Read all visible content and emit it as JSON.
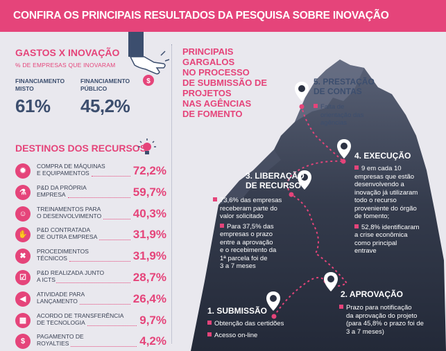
{
  "header": {
    "title": "CONFIRA OS PRINCIPAIS RESULTADOS DA PESQUISA SOBRE INOVAÇÃO"
  },
  "gastos": {
    "title": "GASTOS X INOVAÇÃO",
    "subtitle": "% DE EMPRESAS QUE INOVARAM",
    "misto_label_1": "FINANCIAMENTO",
    "misto_label_2": "MISTO",
    "misto_value": "61%",
    "publico_label_1": "FINANCIAMENTO",
    "publico_label_2": "PÚBLICO",
    "publico_value": "45,2%"
  },
  "destinos": {
    "title": "DESTINOS DOS RECURSOS",
    "items": [
      {
        "line1": "COMPRA DE MÁQUINAS",
        "line2": "E EQUIPAMENTOS",
        "value": "72,2%",
        "icon": "gear-icon"
      },
      {
        "line1": "P&D DA PRÓPRIA",
        "line2": "EMPRESA",
        "value": "59,7%",
        "icon": "flask-icon"
      },
      {
        "line1": "TREINAMENTOS PARA",
        "line2": "O DESENVOLVIMENTO",
        "value": "40,3%",
        "icon": "people-icon"
      },
      {
        "line1": "P&D CONTRATADA",
        "line2": "DE OUTRA EMPRESA",
        "value": "31,9%",
        "icon": "handshake-icon"
      },
      {
        "line1": "PROCEDIMENTOS",
        "line2": "TÉCNICOS",
        "value": "31,9%",
        "icon": "tools-icon"
      },
      {
        "line1": "P&D REALIZADA JUNTO",
        "line2": "A ICTs",
        "value": "28,7%",
        "icon": "clipboard-icon"
      },
      {
        "line1": "ATIVIDADE PARA",
        "line2": "LANÇAMENTO",
        "value": "26,4%",
        "icon": "megaphone-icon"
      },
      {
        "line1": "ACORDO DE TRANSFERÊNCIA",
        "line2": "DE TECNOLOGIA",
        "value": "9,7%",
        "icon": "chip-icon"
      },
      {
        "line1": "PAGAMENTO DE",
        "line2": "ROYALTIES",
        "value": "4,2%",
        "icon": "dollar-icon"
      }
    ]
  },
  "gargalos": {
    "title_1": "PRINCIPAIS GARGALOS",
    "title_2": "NO PROCESSO",
    "title_3": "DE SUBMISSÃO DE",
    "title_4": "PROJETOS",
    "title_5": "NAS AGÊNCIAS",
    "title_6": "DE FOMENTO"
  },
  "steps": {
    "s5": {
      "title_1": "5. PRESTAÇÃO",
      "title_2": "DE CONTAS",
      "t1": "Falta de",
      "t2": "orientação das",
      "t3": "agências"
    },
    "s4": {
      "title": "4. EXECUÇÃO",
      "a1": "9 em cada 10",
      "a2": "empresas que estão",
      "a3": "desenvolvendo a",
      "a4": "inovação já utilizaram",
      "a5": "todo o recurso",
      "a6": "proveniente do órgão",
      "a7": "de fomento;",
      "b1": "52,8% identificaram",
      "b2": "a crise econômica",
      "b3": "como principal",
      "b4": "entrave"
    },
    "s3": {
      "title_1": "3. LIBERAÇÃO",
      "title_2": "DE RECURSO",
      "a1": "73,6% das empresas",
      "a2": "receberam parte do",
      "a3": "valor solicitado",
      "b1": "Para 37,5% das",
      "b2": "empresas o prazo",
      "b3": "entre a aprovação",
      "b4": "e o recebimento da",
      "b5": "1ª parcela foi de",
      "b6": "3 a 7 meses"
    },
    "s2": {
      "title": "2. APROVAÇÃO",
      "a1": "Prazo para notificação",
      "a2": "da aprovação do projeto",
      "a3": "(para 45,8% o prazo foi de",
      "a4": "3 a 7 meses)"
    },
    "s1": {
      "title": "1. SUBMISSÃO",
      "a1": "Obtenção das certidões",
      "a2": "Acesso on-line"
    }
  }
}
